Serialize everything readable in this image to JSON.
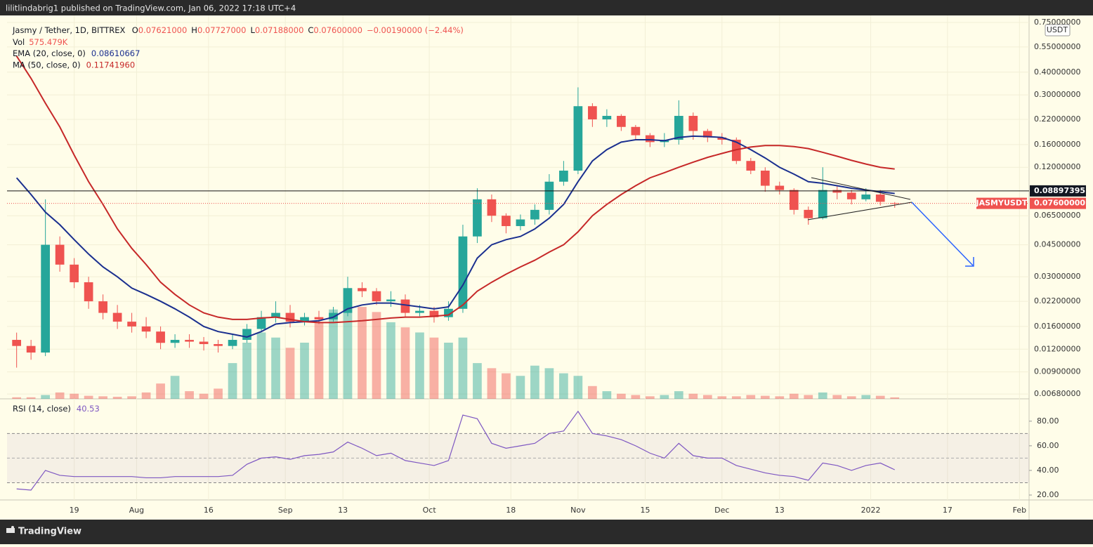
{
  "header": {
    "text": "lilitlindabrig1 published on TradingView.com, Jan 06, 2022 17:18 UTC+4"
  },
  "footer": {
    "brand": "TradingView"
  },
  "chart_data": [
    {
      "type": "candlestick",
      "symbol": "Jasmy / Tether, 1D, BITTREX",
      "ohlc_legend": [
        {
          "key": "O",
          "value": "0.07621000"
        },
        {
          "key": "H",
          "value": "0.07727000"
        },
        {
          "key": "L",
          "value": "0.07188000"
        },
        {
          "key": "C",
          "value": "0.07600000"
        }
      ],
      "change_label": "−0.00190000 (−2.44%)",
      "volume_name": "Vol",
      "volume_label": "575.479K",
      "currency": "USDT",
      "log_scale": true,
      "up_color": "#26a69a",
      "down_color": "#ef5350",
      "x": [
        "2021-07-07",
        "2021-07-10",
        "2021-07-13",
        "2021-07-16",
        "2021-07-19",
        "2021-07-22",
        "2021-07-25",
        "2021-07-28",
        "2021-07-31",
        "2021-08-03",
        "2021-08-06",
        "2021-08-09",
        "2021-08-12",
        "2021-08-15",
        "2021-08-18",
        "2021-08-21",
        "2021-08-24",
        "2021-08-27",
        "2021-08-30",
        "2021-09-02",
        "2021-09-05",
        "2021-09-08",
        "2021-09-11",
        "2021-09-14",
        "2021-09-17",
        "2021-09-20",
        "2021-09-23",
        "2021-09-26",
        "2021-09-29",
        "2021-10-02",
        "2021-10-05",
        "2021-10-08",
        "2021-10-11",
        "2021-10-14",
        "2021-10-17",
        "2021-10-20",
        "2021-10-23",
        "2021-10-26",
        "2021-10-29",
        "2021-11-01",
        "2021-11-04",
        "2021-11-07",
        "2021-11-10",
        "2021-11-13",
        "2021-11-16",
        "2021-11-19",
        "2021-11-22",
        "2021-11-25",
        "2021-11-28",
        "2021-12-01",
        "2021-12-04",
        "2021-12-07",
        "2021-12-10",
        "2021-12-13",
        "2021-12-16",
        "2021-12-19",
        "2021-12-22",
        "2021-12-25",
        "2021-12-28",
        "2021-12-31",
        "2022-01-03",
        "2022-01-06"
      ],
      "open": [
        0.0135,
        0.0125,
        0.0115,
        0.045,
        0.035,
        0.028,
        0.022,
        0.019,
        0.017,
        0.016,
        0.015,
        0.013,
        0.0135,
        0.0132,
        0.0128,
        0.0125,
        0.0135,
        0.0155,
        0.018,
        0.019,
        0.017,
        0.018,
        0.0175,
        0.019,
        0.026,
        0.025,
        0.022,
        0.0225,
        0.019,
        0.0195,
        0.018,
        0.02,
        0.05,
        0.08,
        0.065,
        0.057,
        0.062,
        0.07,
        0.1,
        0.115,
        0.26,
        0.22,
        0.23,
        0.2,
        0.18,
        0.165,
        0.17,
        0.23,
        0.19,
        0.175,
        0.17,
        0.13,
        0.115,
        0.095,
        0.09,
        0.07,
        0.063,
        0.09,
        0.087,
        0.08,
        0.085,
        0.07621
      ],
      "high": [
        0.0148,
        0.0135,
        0.08,
        0.05,
        0.038,
        0.03,
        0.024,
        0.021,
        0.019,
        0.018,
        0.016,
        0.0145,
        0.0145,
        0.014,
        0.0135,
        0.0145,
        0.0165,
        0.0195,
        0.022,
        0.021,
        0.019,
        0.0195,
        0.0205,
        0.03,
        0.028,
        0.026,
        0.025,
        0.024,
        0.021,
        0.0205,
        0.022,
        0.058,
        0.092,
        0.085,
        0.067,
        0.066,
        0.075,
        0.11,
        0.13,
        0.33,
        0.27,
        0.25,
        0.235,
        0.205,
        0.185,
        0.185,
        0.28,
        0.24,
        0.195,
        0.185,
        0.175,
        0.135,
        0.12,
        0.1,
        0.092,
        0.073,
        0.12,
        0.095,
        0.09,
        0.092,
        0.09,
        0.07727
      ],
      "low": [
        0.0095,
        0.0105,
        0.011,
        0.032,
        0.026,
        0.02,
        0.0175,
        0.0155,
        0.0148,
        0.0138,
        0.012,
        0.0122,
        0.0122,
        0.0118,
        0.0115,
        0.012,
        0.013,
        0.015,
        0.0168,
        0.0158,
        0.0162,
        0.0165,
        0.017,
        0.0182,
        0.0232,
        0.021,
        0.0205,
        0.018,
        0.0182,
        0.0168,
        0.0172,
        0.019,
        0.046,
        0.06,
        0.052,
        0.054,
        0.058,
        0.066,
        0.095,
        0.11,
        0.2,
        0.2,
        0.19,
        0.17,
        0.155,
        0.155,
        0.16,
        0.17,
        0.165,
        0.16,
        0.125,
        0.11,
        0.088,
        0.085,
        0.066,
        0.058,
        0.062,
        0.08,
        0.075,
        0.078,
        0.074,
        0.07188
      ],
      "close": [
        0.0125,
        0.0115,
        0.045,
        0.035,
        0.028,
        0.022,
        0.019,
        0.017,
        0.016,
        0.015,
        0.013,
        0.0135,
        0.0132,
        0.0128,
        0.0125,
        0.0135,
        0.0155,
        0.018,
        0.019,
        0.017,
        0.018,
        0.0175,
        0.019,
        0.026,
        0.025,
        0.022,
        0.0225,
        0.019,
        0.0195,
        0.018,
        0.02,
        0.05,
        0.08,
        0.065,
        0.057,
        0.062,
        0.07,
        0.1,
        0.115,
        0.26,
        0.22,
        0.23,
        0.2,
        0.18,
        0.165,
        0.17,
        0.23,
        0.19,
        0.175,
        0.17,
        0.13,
        0.115,
        0.095,
        0.09,
        0.07,
        0.063,
        0.09,
        0.087,
        0.08,
        0.085,
        0.0775,
        0.076
      ],
      "volume": [
        600,
        600,
        1500,
        2500,
        2000,
        1200,
        1000,
        800,
        1000,
        2500,
        6000,
        9000,
        3000,
        2000,
        4000,
        14000,
        22000,
        26000,
        24000,
        20000,
        22000,
        30000,
        35000,
        38000,
        36000,
        34000,
        30000,
        28000,
        26000,
        24000,
        22000,
        24000,
        14000,
        12000,
        10000,
        9000,
        13000,
        12000,
        10000,
        9000,
        5000,
        3000,
        2000,
        1500,
        1000,
        1500,
        3000,
        2000,
        1500,
        1000,
        1000,
        1500,
        1200,
        1000,
        2000,
        1500,
        2500,
        1500,
        1000,
        1500,
        1200,
        575.479
      ],
      "volume_lim": [
        0,
        44000
      ],
      "series": [
        {
          "name": "EMA (20, close, 0)",
          "color": "#1a2f8f",
          "legend_value": "0.08610667",
          "values": [
            0.105,
            0.085,
            0.068,
            0.058,
            0.048,
            0.04,
            0.034,
            0.03,
            0.026,
            0.024,
            0.022,
            0.02,
            0.018,
            0.016,
            0.015,
            0.0145,
            0.014,
            0.015,
            0.0165,
            0.0168,
            0.017,
            0.0172,
            0.018,
            0.02,
            0.021,
            0.0215,
            0.0215,
            0.021,
            0.0205,
            0.02,
            0.0205,
            0.027,
            0.038,
            0.045,
            0.048,
            0.05,
            0.055,
            0.063,
            0.075,
            0.1,
            0.13,
            0.15,
            0.165,
            0.17,
            0.17,
            0.168,
            0.175,
            0.178,
            0.177,
            0.175,
            0.165,
            0.15,
            0.135,
            0.12,
            0.11,
            0.1,
            0.098,
            0.095,
            0.092,
            0.09,
            0.088,
            0.0861
          ]
        },
        {
          "name": "MA (50, close, 0)",
          "color": "#c62828",
          "legend_value": "0.11741960",
          "values": [
            0.49,
            0.37,
            0.27,
            0.2,
            0.14,
            0.1,
            0.075,
            0.055,
            0.043,
            0.035,
            0.028,
            0.024,
            0.021,
            0.019,
            0.018,
            0.0175,
            0.0175,
            0.0178,
            0.018,
            0.0175,
            0.017,
            0.0168,
            0.0168,
            0.017,
            0.0172,
            0.0175,
            0.0178,
            0.018,
            0.018,
            0.0182,
            0.0185,
            0.021,
            0.025,
            0.028,
            0.031,
            0.034,
            0.037,
            0.041,
            0.045,
            0.053,
            0.065,
            0.075,
            0.085,
            0.095,
            0.105,
            0.112,
            0.12,
            0.128,
            0.136,
            0.143,
            0.15,
            0.155,
            0.158,
            0.158,
            0.156,
            0.152,
            0.145,
            0.138,
            0.131,
            0.125,
            0.12,
            0.1174
          ]
        }
      ],
      "hline": {
        "value": 0.08897395,
        "label": "0.08897395"
      },
      "last": {
        "value": 0.076,
        "label": "0.07600000",
        "symbol": "JASMYUSDT"
      },
      "xlim": [
        "2021-07-05",
        "2022-02-03"
      ],
      "xticks": [
        {
          "value": "2021-07-19",
          "label": "19"
        },
        {
          "value": "2021-08-01",
          "label": "Aug"
        },
        {
          "value": "2021-08-16",
          "label": "16"
        },
        {
          "value": "2021-09-01",
          "label": "Sep"
        },
        {
          "value": "2021-09-13",
          "label": "13"
        },
        {
          "value": "2021-10-01",
          "label": "Oct"
        },
        {
          "value": "2021-10-18",
          "label": "18"
        },
        {
          "value": "2021-11-01",
          "label": "Nov"
        },
        {
          "value": "2021-11-15",
          "label": "15"
        },
        {
          "value": "2021-12-01",
          "label": "Dec"
        },
        {
          "value": "2021-12-13",
          "label": "13"
        },
        {
          "value": "2022-01-01",
          "label": "2022"
        },
        {
          "value": "2022-01-17",
          "label": "17"
        },
        {
          "value": "2022-02-01",
          "label": "Feb"
        }
      ],
      "ylim": [
        0.0064,
        0.82
      ],
      "yticks": [
        {
          "value": 0.75,
          "label": "0.75000000"
        },
        {
          "value": 0.55,
          "label": "0.55000000"
        },
        {
          "value": 0.4,
          "label": "0.40000000"
        },
        {
          "value": 0.3,
          "label": "0.30000000"
        },
        {
          "value": 0.22,
          "label": "0.22000000"
        },
        {
          "value": 0.16,
          "label": "0.16000000"
        },
        {
          "value": 0.12,
          "label": "0.12000000"
        },
        {
          "value": 0.065,
          "label": "0.06500000"
        },
        {
          "value": 0.045,
          "label": "0.04500000"
        },
        {
          "value": 0.03,
          "label": "0.03000000"
        },
        {
          "value": 0.022,
          "label": "0.02200000"
        },
        {
          "value": 0.016,
          "label": "0.01600000"
        },
        {
          "value": 0.012,
          "label": "0.01200000"
        },
        {
          "value": 0.009,
          "label": "0.00900000"
        },
        {
          "value": 0.0068,
          "label": "0.00680000"
        }
      ]
    },
    {
      "type": "line",
      "name": "RSI (14, close)",
      "legend_value": "40.53",
      "color": "#7e57c2",
      "values": [
        25,
        24,
        40,
        36,
        35,
        35,
        35,
        35,
        35,
        34,
        34,
        35,
        35,
        35,
        35,
        36,
        45,
        50,
        51,
        49,
        52,
        53,
        55,
        63,
        58,
        52,
        54,
        48,
        46,
        44,
        48,
        85,
        82,
        62,
        58,
        60,
        62,
        70,
        72,
        88,
        70,
        68,
        65,
        60,
        54,
        50,
        62,
        52,
        50,
        50,
        44,
        41,
        38,
        36,
        35,
        32,
        46,
        44,
        40,
        44,
        46,
        40.53
      ],
      "bands": [
        30,
        70
      ],
      "midline": 50,
      "ylim": [
        16,
        97
      ],
      "yticks": [
        {
          "value": 80,
          "label": "80.00"
        },
        {
          "value": 60,
          "label": "60.00"
        },
        {
          "value": 40,
          "label": "40.00"
        },
        {
          "value": 20,
          "label": "20.00"
        }
      ]
    }
  ]
}
